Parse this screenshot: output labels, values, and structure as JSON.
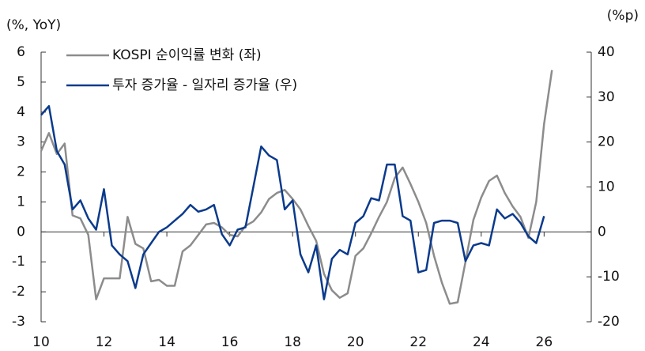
{
  "chart_data": {
    "type": "line",
    "y_label": "(%, YoY)",
    "y2_label": "(%p)",
    "xlim": [
      10,
      27.5
    ],
    "xticks": [
      10,
      12,
      14,
      16,
      18,
      20,
      22,
      24,
      26
    ],
    "ylim": [
      -3,
      6
    ],
    "yticks": [
      -3,
      -2,
      -1,
      0,
      1,
      2,
      3,
      4,
      5,
      6
    ],
    "y2lim": [
      -20,
      40
    ],
    "y2ticks": [
      -20,
      -10,
      0,
      10,
      20,
      30,
      40
    ],
    "legend": "upper left",
    "series": [
      {
        "name": "KOSPI 순이익률 변화 (좌)",
        "color": "#8c8c8c",
        "axis": "y",
        "x": [
          10,
          10.25,
          10.5,
          10.75,
          11,
          11.25,
          11.5,
          11.75,
          12,
          12.25,
          12.5,
          12.75,
          13,
          13.25,
          13.5,
          13.75,
          14,
          14.25,
          14.5,
          14.75,
          15,
          15.25,
          15.5,
          15.75,
          16,
          16.25,
          16.5,
          16.75,
          17,
          17.25,
          17.5,
          17.75,
          18,
          18.25,
          18.5,
          18.75,
          19,
          19.25,
          19.5,
          19.75,
          20,
          20.25,
          20.5,
          20.75,
          21,
          21.25,
          21.5,
          21.75,
          22,
          22.25,
          22.5,
          22.75,
          23,
          23.25,
          23.5,
          23.75,
          24,
          24.25,
          24.5,
          24.75,
          25,
          25.25,
          25.5,
          25.75,
          26,
          26.25
        ],
        "values": [
          2.7,
          3.3,
          2.6,
          2.95,
          0.55,
          0.45,
          -0.1,
          -2.25,
          -1.55,
          -1.55,
          -1.55,
          0.5,
          -0.4,
          -0.55,
          -1.65,
          -1.6,
          -1.8,
          -1.8,
          -0.65,
          -0.45,
          -0.1,
          0.25,
          0.3,
          0.15,
          -0.1,
          -0.15,
          0.2,
          0.35,
          0.65,
          1.1,
          1.3,
          1.4,
          1.1,
          0.75,
          0.2,
          -0.3,
          -1.4,
          -1.95,
          -2.2,
          -2.05,
          -0.8,
          -0.55,
          -0.05,
          0.5,
          1.0,
          1.8,
          2.15,
          1.6,
          1.0,
          0.3,
          -0.8,
          -1.7,
          -2.4,
          -2.35,
          -1.0,
          0.4,
          1.15,
          1.7,
          1.88,
          1.3,
          0.85,
          0.5,
          -0.2,
          1.0,
          3.6,
          5.4
        ]
      },
      {
        "name": "투자 증가율 - 일자리 증가율 (우)",
        "color": "#0a3a8c",
        "axis": "y2",
        "x": [
          10,
          10.25,
          10.5,
          10.75,
          11,
          11.25,
          11.5,
          11.75,
          12,
          12.25,
          12.5,
          12.75,
          13,
          13.25,
          13.5,
          13.75,
          14,
          14.25,
          14.5,
          14.75,
          15,
          15.25,
          15.5,
          15.75,
          16,
          16.25,
          16.5,
          16.75,
          17,
          17.25,
          17.5,
          17.75,
          18,
          18.25,
          18.5,
          18.75,
          19,
          19.25,
          19.5,
          19.75,
          20,
          20.25,
          20.5,
          20.75,
          21,
          21.25,
          21.5,
          21.75,
          22,
          22.25,
          22.5,
          22.75,
          23,
          23.25,
          23.5,
          23.75,
          24,
          24.25,
          24.5,
          24.75,
          25,
          25.25,
          25.5,
          25.75,
          26
        ],
        "values": [
          26,
          28,
          18,
          15,
          5,
          7,
          3,
          0.5,
          9.5,
          -3,
          -5,
          -6.5,
          -12.5,
          -5,
          -2.5,
          0,
          1,
          2.5,
          4,
          6,
          4.5,
          5,
          6,
          -0.5,
          -3,
          0.5,
          1,
          10,
          19,
          17,
          16,
          5,
          7,
          -5,
          -9,
          -3,
          -15,
          -6,
          -4,
          -5,
          2,
          3.5,
          7.5,
          7,
          15,
          15,
          3.5,
          2.5,
          -9,
          -8.5,
          2,
          2.5,
          2.5,
          2,
          -6.5,
          -3,
          -2.5,
          -3,
          5,
          3,
          4,
          2,
          -1,
          -2.5,
          3.5
        ]
      }
    ]
  }
}
